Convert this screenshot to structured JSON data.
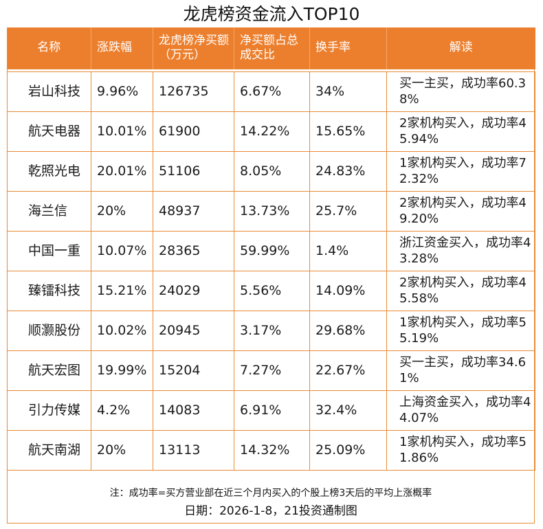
{
  "title": "龙虎榜资金流入TOP10",
  "headers": [
    "名称",
    "涨跌幅",
    "龙虎榜净买额（万元）",
    "净买额占总成交比",
    "换手率",
    "解读"
  ],
  "rows": [
    [
      "岩山科技",
      "9.96%",
      "126735",
      "6.67%",
      "34%",
      "买一主买，成功率60.38%"
    ],
    [
      "航天电器",
      "10.01%",
      "61900",
      "14.22%",
      "15.65%",
      "2家机构买入，成功率45.94%"
    ],
    [
      "乾照光电",
      "20.01%",
      "51106",
      "8.05%",
      "24.83%",
      "1家机构买入，成功率72.32%"
    ],
    [
      "海兰信",
      "20%",
      "48937",
      "13.73%",
      "25.7%",
      "2家机构买入，成功率49.20%"
    ],
    [
      "中国一重",
      "10.07%",
      "28365",
      "59.99%",
      "1.4%",
      "浙江资金买入，成功率43.28%"
    ],
    [
      "臻镭科技",
      "15.21%",
      "24029",
      "5.56%",
      "14.09%",
      "2家机构买入，成功率45.58%"
    ],
    [
      "顺灏股份",
      "10.02%",
      "20945",
      "3.17%",
      "29.68%",
      "1家机构买入，成功率55.19%"
    ],
    [
      "航天宏图",
      "19.99%",
      "15204",
      "7.27%",
      "22.67%",
      "买一主买，成功率34.61%"
    ],
    [
      "引力传媒",
      "4.2%",
      "14083",
      "6.91%",
      "32.4%",
      "上海资金买入，成功率44.07%"
    ],
    [
      "航天南湖",
      "20%",
      "13113",
      "14.32%",
      "25.09%",
      "1家机构买入，成功率51.86%"
    ]
  ],
  "note": "注：成功率=买方营业部在近三个月内买入的个股上榜3天后的平均上涨概率",
  "date": "日期：2026-1-8，21投资通制图",
  "colors": {
    "header_bg": "#ec7f2d",
    "border": "#e98a36"
  }
}
